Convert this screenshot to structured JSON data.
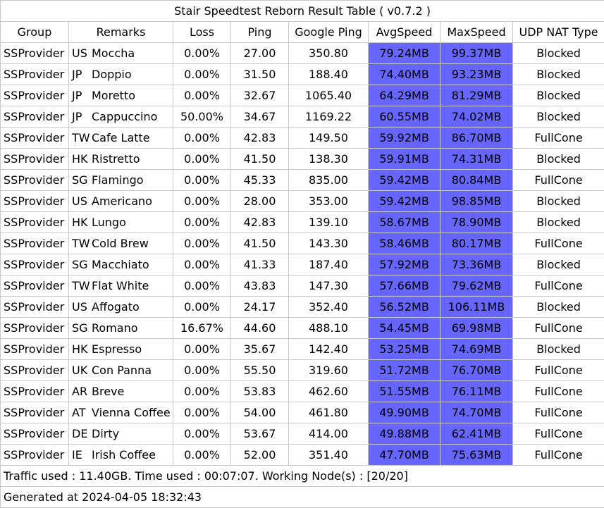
{
  "title": "Stair Speedtest Reborn Result Table ( v0.7.2 )",
  "headers": [
    "Group",
    "Remarks",
    "Loss",
    "Ping",
    "Google Ping",
    "AvgSpeed",
    "MaxSpeed",
    "UDP NAT Type"
  ],
  "rows": [
    {
      "group": "SSProvider",
      "cc": "US",
      "name": "Moccha",
      "loss": "0.00%",
      "ping": "27.00",
      "gping": "350.80",
      "avg": "79.24MB",
      "max": "99.37MB",
      "nat": "Blocked"
    },
    {
      "group": "SSProvider",
      "cc": "JP",
      "name": "Doppio",
      "loss": "0.00%",
      "ping": "31.50",
      "gping": "188.40",
      "avg": "74.40MB",
      "max": "93.23MB",
      "nat": "Blocked"
    },
    {
      "group": "SSProvider",
      "cc": "JP",
      "name": "Moretto",
      "loss": "0.00%",
      "ping": "32.67",
      "gping": "1065.40",
      "avg": "64.29MB",
      "max": "81.29MB",
      "nat": "Blocked"
    },
    {
      "group": "SSProvider",
      "cc": "JP",
      "name": "Cappuccino",
      "loss": "50.00%",
      "ping": "34.67",
      "gping": "1169.22",
      "avg": "60.55MB",
      "max": "74.02MB",
      "nat": "Blocked"
    },
    {
      "group": "SSProvider",
      "cc": "TW",
      "name": "Cafe Latte",
      "loss": "0.00%",
      "ping": "42.83",
      "gping": "149.50",
      "avg": "59.92MB",
      "max": "86.70MB",
      "nat": "FullCone"
    },
    {
      "group": "SSProvider",
      "cc": "HK",
      "name": "Ristretto",
      "loss": "0.00%",
      "ping": "41.50",
      "gping": "138.30",
      "avg": "59.91MB",
      "max": "74.31MB",
      "nat": "Blocked"
    },
    {
      "group": "SSProvider",
      "cc": "SG",
      "name": "Flamingo",
      "loss": "0.00%",
      "ping": "45.33",
      "gping": "835.00",
      "avg": "59.42MB",
      "max": "80.84MB",
      "nat": "FullCone"
    },
    {
      "group": "SSProvider",
      "cc": "US",
      "name": "Americano",
      "loss": "0.00%",
      "ping": "28.00",
      "gping": "353.00",
      "avg": "59.42MB",
      "max": "98.85MB",
      "nat": "Blocked"
    },
    {
      "group": "SSProvider",
      "cc": "HK",
      "name": "Lungo",
      "loss": "0.00%",
      "ping": "42.83",
      "gping": "139.10",
      "avg": "58.67MB",
      "max": "78.90MB",
      "nat": "Blocked"
    },
    {
      "group": "SSProvider",
      "cc": "TW",
      "name": "Cold Brew",
      "loss": "0.00%",
      "ping": "41.50",
      "gping": "143.30",
      "avg": "58.46MB",
      "max": "80.17MB",
      "nat": "FullCone"
    },
    {
      "group": "SSProvider",
      "cc": "SG",
      "name": "Macchiato",
      "loss": "0.00%",
      "ping": "41.33",
      "gping": "187.40",
      "avg": "57.92MB",
      "max": "73.36MB",
      "nat": "Blocked"
    },
    {
      "group": "SSProvider",
      "cc": "TW",
      "name": "Flat White",
      "loss": "0.00%",
      "ping": "43.83",
      "gping": "147.30",
      "avg": "57.66MB",
      "max": "79.62MB",
      "nat": "FullCone"
    },
    {
      "group": "SSProvider",
      "cc": "US",
      "name": "Affogato",
      "loss": "0.00%",
      "ping": "24.17",
      "gping": "352.40",
      "avg": "56.52MB",
      "max": "106.11MB",
      "nat": "Blocked"
    },
    {
      "group": "SSProvider",
      "cc": "SG",
      "name": "Romano",
      "loss": "16.67%",
      "ping": "44.60",
      "gping": "488.10",
      "avg": "54.45MB",
      "max": "69.98MB",
      "nat": "FullCone"
    },
    {
      "group": "SSProvider",
      "cc": "HK",
      "name": "Espresso",
      "loss": "0.00%",
      "ping": "35.67",
      "gping": "142.40",
      "avg": "53.25MB",
      "max": "74.69MB",
      "nat": "Blocked"
    },
    {
      "group": "SSProvider",
      "cc": "UK",
      "name": "Con Panna",
      "loss": "0.00%",
      "ping": "55.50",
      "gping": "319.60",
      "avg": "51.72MB",
      "max": "76.70MB",
      "nat": "FullCone"
    },
    {
      "group": "SSProvider",
      "cc": "AR",
      "name": "Breve",
      "loss": "0.00%",
      "ping": "53.83",
      "gping": "462.60",
      "avg": "51.55MB",
      "max": "76.11MB",
      "nat": "FullCone"
    },
    {
      "group": "SSProvider",
      "cc": "AT",
      "name": "Vienna Coffee",
      "loss": "0.00%",
      "ping": "54.00",
      "gping": "461.80",
      "avg": "49.90MB",
      "max": "74.70MB",
      "nat": "FullCone"
    },
    {
      "group": "SSProvider",
      "cc": "DE",
      "name": "Dirty",
      "loss": "0.00%",
      "ping": "53.67",
      "gping": "414.00",
      "avg": "49.88MB",
      "max": "62.41MB",
      "nat": "FullCone"
    },
    {
      "group": "SSProvider",
      "cc": "IE",
      "name": "Irish Coffee",
      "loss": "0.00%",
      "ping": "52.00",
      "gping": "351.40",
      "avg": "47.70MB",
      "max": "75.63MB",
      "nat": "FullCone"
    }
  ],
  "footer": {
    "traffic": "Traffic used : 11.40GB. Time used : 00:07:07. Working Node(s) : [20/20]",
    "generated": "Generated at 2024-04-05 18:32:43"
  },
  "colors": {
    "speed_cell": "#6666ff",
    "border": "#c8c8c8",
    "background": "#ffffff"
  }
}
